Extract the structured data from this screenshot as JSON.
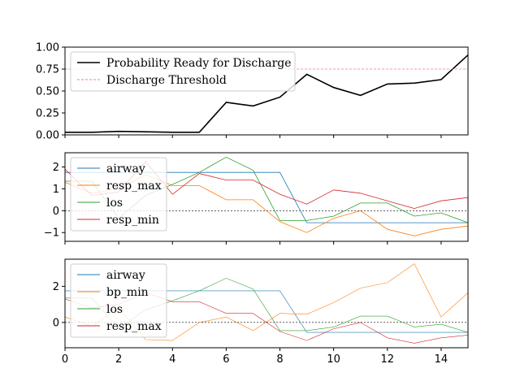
{
  "chart_data": [
    {
      "type": "line",
      "title": "",
      "xlabel": "",
      "ylabel": "",
      "xlim": [
        0,
        15
      ],
      "ylim": [
        0,
        1
      ],
      "xticks": [
        0,
        2,
        4,
        6,
        8,
        10,
        12,
        14
      ],
      "xtick_labels_visible": false,
      "yticks": [
        0,
        0.25,
        0.5,
        0.75,
        1.0
      ],
      "ytick_labels": [
        "0.00",
        "0.25",
        "0.50",
        "0.75",
        "1.00"
      ],
      "legend_position": "upper-left",
      "series": [
        {
          "name": "Probability Ready for Discharge",
          "color": "#000000",
          "width": 1.6,
          "dash": "",
          "x": [
            0,
            1,
            2,
            3,
            4,
            5,
            6,
            7,
            8,
            9,
            10,
            11,
            12,
            13,
            14,
            15
          ],
          "y": [
            0.03,
            0.03,
            0.04,
            0.035,
            0.03,
            0.03,
            0.37,
            0.33,
            0.43,
            0.69,
            0.54,
            0.45,
            0.58,
            0.59,
            0.63,
            0.91
          ]
        },
        {
          "name": "Discharge Threshold",
          "color": "#f08080",
          "width": 0.8,
          "dash": "3,2",
          "x": [
            0,
            15
          ],
          "y": [
            0.75,
            0.75
          ]
        }
      ]
    },
    {
      "type": "line",
      "title": "",
      "xlabel": "",
      "ylabel": "",
      "xlim": [
        0,
        15
      ],
      "ylim": [
        -1.4,
        2.65
      ],
      "xticks": [
        0,
        2,
        4,
        6,
        8,
        10,
        12,
        14
      ],
      "xtick_labels_visible": false,
      "yticks": [
        -1,
        0,
        1,
        2
      ],
      "ytick_labels": [
        "−1",
        "0",
        "1",
        "2"
      ],
      "zero_line": true,
      "legend_position": "upper-left",
      "series": [
        {
          "name": "airway",
          "color": "#1f77b4",
          "width": 0.8,
          "dash": "",
          "x": [
            0,
            1,
            2,
            3,
            4,
            5,
            6,
            7,
            8,
            9,
            10,
            11,
            12,
            13,
            14,
            15
          ],
          "y": [
            1.75,
            1.75,
            1.75,
            1.75,
            1.75,
            1.75,
            1.75,
            1.75,
            1.75,
            -0.55,
            -0.55,
            -0.55,
            -0.55,
            -0.55,
            -0.55,
            -0.55
          ]
        },
        {
          "name": "resp_max",
          "color": "#ff7f0e",
          "width": 0.8,
          "dash": "",
          "x": [
            0,
            1,
            2,
            3,
            4,
            5,
            6,
            7,
            8,
            9,
            10,
            11,
            12,
            13,
            14,
            15
          ],
          "y": [
            1.3,
            0.8,
            1.0,
            1.65,
            1.15,
            1.15,
            0.5,
            0.5,
            -0.5,
            -1.0,
            -0.35,
            0.0,
            -0.85,
            -1.15,
            -0.85,
            -0.7
          ]
        },
        {
          "name": "los",
          "color": "#2ca02c",
          "width": 0.8,
          "dash": "",
          "x": [
            0,
            1,
            2,
            3,
            4,
            5,
            6,
            7,
            8,
            9,
            10,
            11,
            12,
            13,
            14,
            15
          ],
          "y": [
            1.35,
            1.35,
            -0.35,
            0.7,
            1.2,
            1.75,
            2.45,
            1.85,
            -0.45,
            -0.45,
            -0.25,
            0.35,
            0.35,
            -0.25,
            -0.1,
            -0.55
          ]
        },
        {
          "name": "resp_min",
          "color": "#d62728",
          "width": 0.8,
          "dash": "",
          "x": [
            0,
            1,
            2,
            3,
            4,
            5,
            6,
            7,
            8,
            9,
            10,
            11,
            12,
            13,
            14,
            15
          ],
          "y": [
            1.9,
            0.7,
            0.85,
            2.25,
            0.75,
            1.7,
            1.4,
            1.4,
            0.75,
            0.3,
            0.95,
            0.8,
            0.45,
            0.1,
            0.45,
            0.6
          ]
        }
      ]
    },
    {
      "type": "line",
      "title": "",
      "xlabel": "",
      "ylabel": "",
      "xlim": [
        0,
        15
      ],
      "ylim": [
        -1.4,
        3.5
      ],
      "xticks": [
        0,
        2,
        4,
        6,
        8,
        10,
        12,
        14
      ],
      "xtick_labels": [
        "0",
        "2",
        "4",
        "6",
        "8",
        "10",
        "12",
        "14"
      ],
      "xtick_labels_visible": true,
      "yticks": [
        0,
        2
      ],
      "ytick_labels": [
        "0",
        "2"
      ],
      "zero_line": true,
      "legend_position": "upper-left",
      "series": [
        {
          "name": "airway",
          "color": "#1f77b4",
          "width": 0.6,
          "dash": "",
          "x": [
            0,
            1,
            2,
            3,
            4,
            5,
            6,
            7,
            8,
            9,
            10,
            11,
            12,
            13,
            14,
            15
          ],
          "y": [
            1.75,
            1.75,
            1.75,
            1.75,
            1.75,
            1.75,
            1.75,
            1.75,
            1.75,
            -0.55,
            -0.55,
            -0.55,
            -0.55,
            -0.55,
            -0.55,
            -0.55
          ]
        },
        {
          "name": "bp_min",
          "color": "#ff7f0e",
          "width": 0.6,
          "dash": "",
          "x": [
            0,
            1,
            2,
            3,
            4,
            5,
            6,
            7,
            8,
            9,
            10,
            11,
            12,
            13,
            14,
            15
          ],
          "y": [
            0.3,
            -0.2,
            0.8,
            -0.95,
            -1.0,
            0.0,
            0.3,
            -0.45,
            0.5,
            0.45,
            1.1,
            1.9,
            2.2,
            3.25,
            0.3,
            1.65
          ]
        },
        {
          "name": "los",
          "color": "#2ca02c",
          "width": 0.6,
          "dash": "",
          "x": [
            0,
            1,
            2,
            3,
            4,
            5,
            6,
            7,
            8,
            9,
            10,
            11,
            12,
            13,
            14,
            15
          ],
          "y": [
            1.35,
            1.35,
            -0.35,
            0.7,
            1.2,
            1.75,
            2.45,
            1.85,
            -0.45,
            -0.45,
            -0.25,
            0.35,
            0.35,
            -0.25,
            -0.1,
            -0.55
          ]
        },
        {
          "name": "resp_max",
          "color": "#d62728",
          "width": 0.6,
          "dash": "",
          "x": [
            0,
            1,
            2,
            3,
            4,
            5,
            6,
            7,
            8,
            9,
            10,
            11,
            12,
            13,
            14,
            15
          ],
          "y": [
            1.3,
            0.8,
            1.0,
            1.65,
            1.15,
            1.15,
            0.5,
            0.5,
            -0.5,
            -1.0,
            -0.35,
            0.0,
            -0.85,
            -1.15,
            -0.85,
            -0.7
          ]
        }
      ]
    }
  ]
}
